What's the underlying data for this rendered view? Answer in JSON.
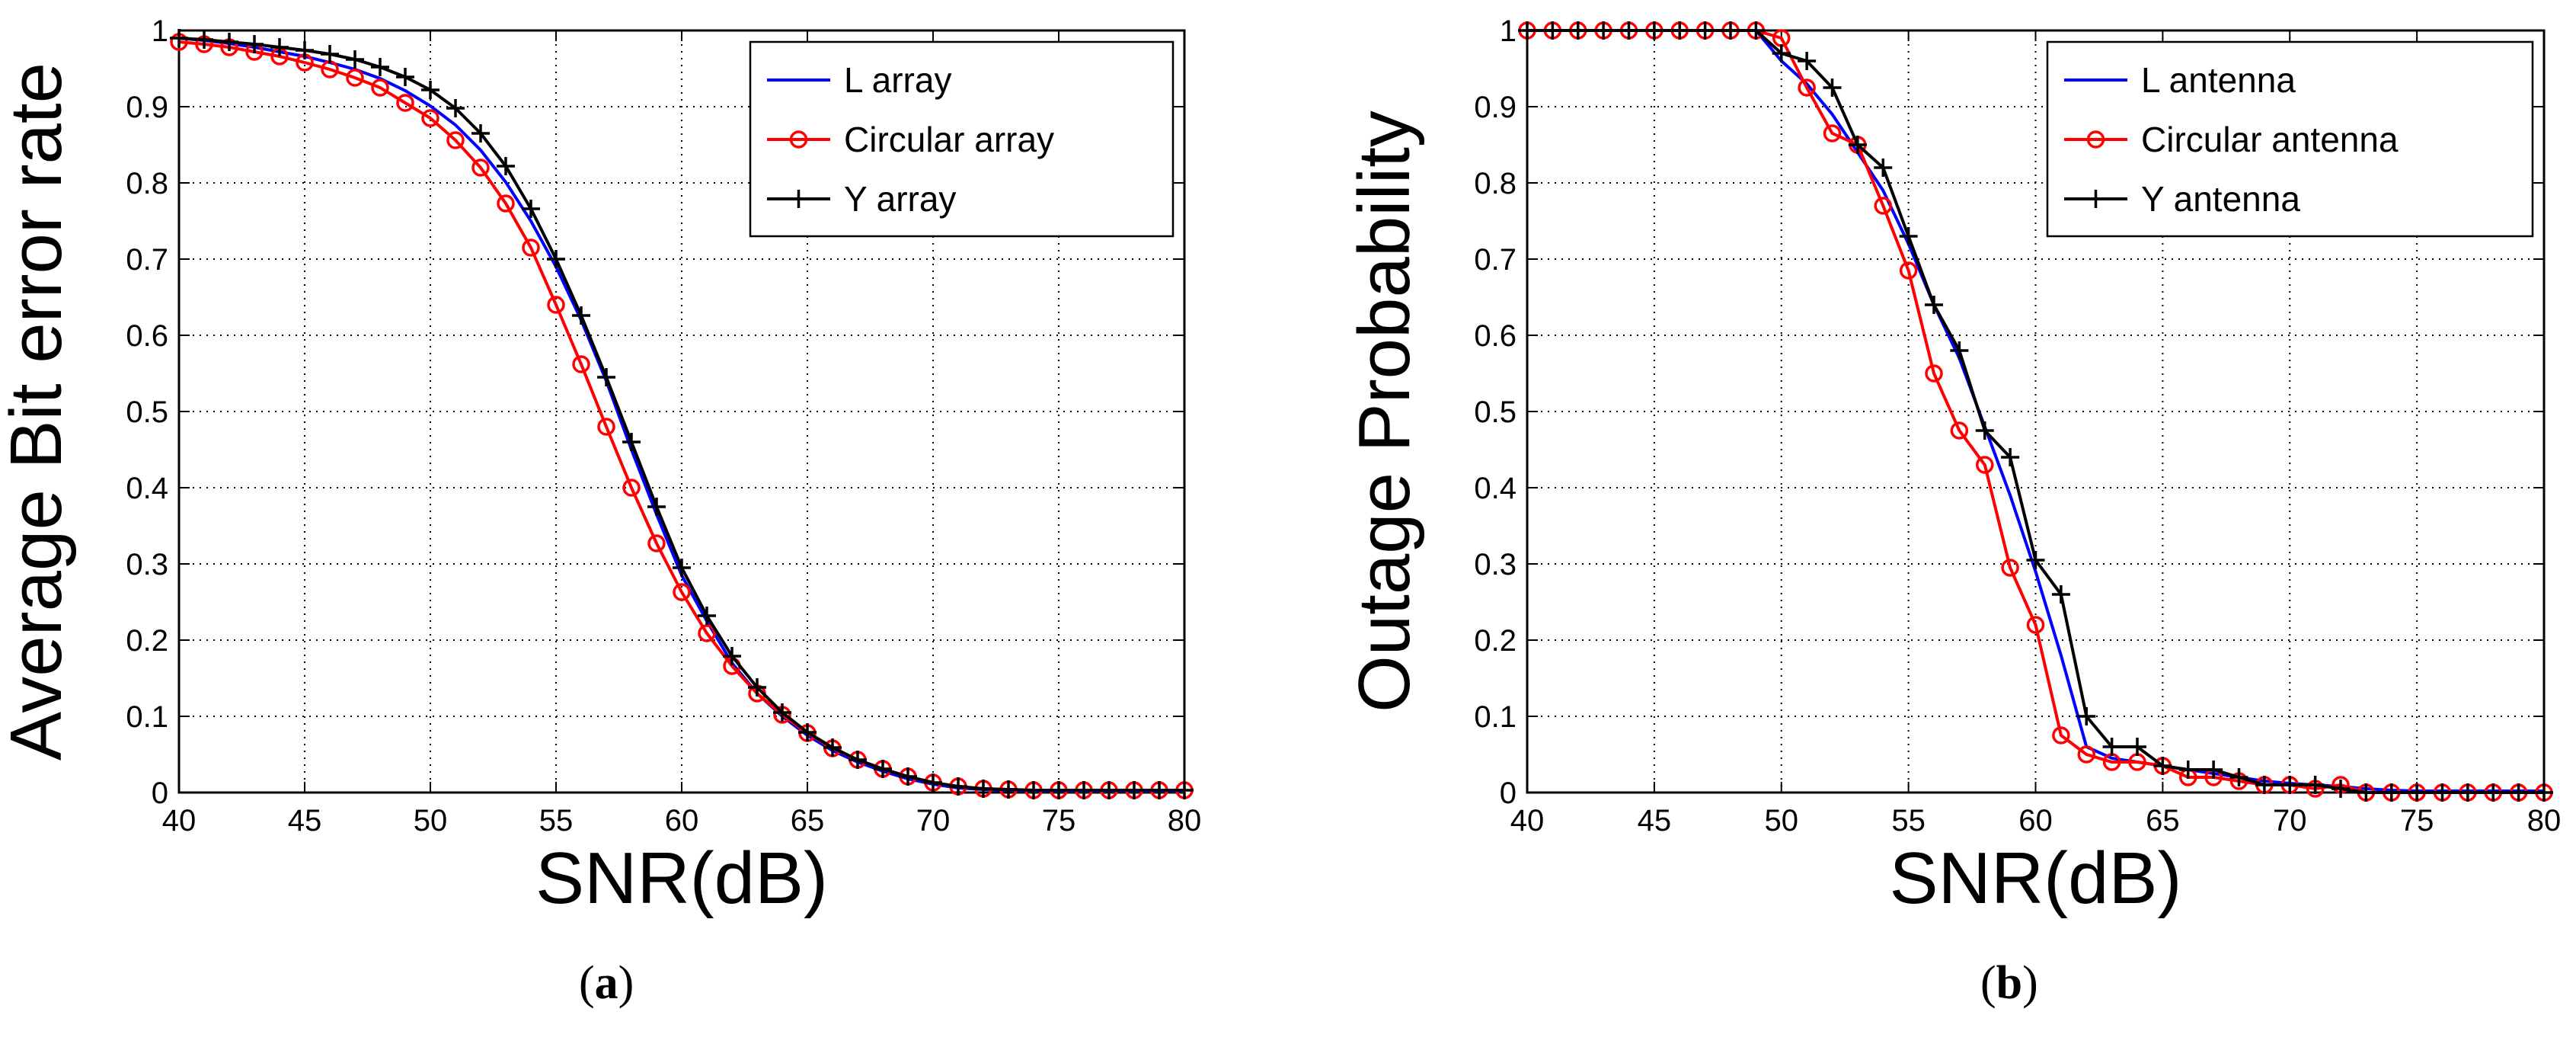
{
  "figure_label_a": "a",
  "figure_label_b": "b",
  "chart_data": [
    {
      "type": "line",
      "title": "",
      "xlabel": "SNR(dB)",
      "ylabel": "Average Bit error rate",
      "xlim": [
        40,
        80
      ],
      "ylim": [
        0,
        1
      ],
      "xticks": [
        "40",
        "45",
        "50",
        "55",
        "60",
        "65",
        "70",
        "75",
        "80"
      ],
      "yticks": [
        "0",
        "0.1",
        "0.2",
        "0.3",
        "0.4",
        "0.5",
        "0.6",
        "0.7",
        "0.8",
        "0.9",
        "1"
      ],
      "grid": true,
      "legend_position": "top-right",
      "x": [
        40,
        41,
        42,
        43,
        44,
        45,
        46,
        47,
        48,
        49,
        50,
        51,
        52,
        53,
        54,
        55,
        56,
        57,
        58,
        59,
        60,
        61,
        62,
        63,
        64,
        65,
        66,
        67,
        68,
        69,
        70,
        71,
        72,
        73,
        74,
        75,
        76,
        77,
        78,
        79,
        80
      ],
      "series": [
        {
          "name": "L array",
          "color": "#0000ff",
          "marker": "none",
          "values": [
            0.99,
            0.987,
            0.983,
            0.978,
            0.972,
            0.966,
            0.958,
            0.949,
            0.937,
            0.921,
            0.901,
            0.876,
            0.843,
            0.801,
            0.75,
            0.69,
            0.62,
            0.54,
            0.45,
            0.365,
            0.285,
            0.225,
            0.17,
            0.13,
            0.1,
            0.075,
            0.055,
            0.04,
            0.028,
            0.018,
            0.011,
            0.006,
            0.004,
            0.003,
            0.002,
            0.002,
            0.002,
            0.002,
            0.002,
            0.002,
            0.002
          ]
        },
        {
          "name": "Circular array",
          "color": "#ff0000",
          "marker": "circle",
          "values": [
            0.985,
            0.982,
            0.978,
            0.972,
            0.966,
            0.958,
            0.949,
            0.938,
            0.925,
            0.905,
            0.885,
            0.856,
            0.82,
            0.773,
            0.715,
            0.64,
            0.562,
            0.48,
            0.4,
            0.327,
            0.263,
            0.209,
            0.166,
            0.13,
            0.102,
            0.078,
            0.058,
            0.043,
            0.031,
            0.021,
            0.013,
            0.008,
            0.005,
            0.004,
            0.003,
            0.003,
            0.003,
            0.003,
            0.003,
            0.003,
            0.003
          ]
        },
        {
          "name": "Y array",
          "color": "#000000",
          "marker": "plus",
          "values": [
            0.99,
            0.988,
            0.985,
            0.982,
            0.978,
            0.974,
            0.969,
            0.962,
            0.952,
            0.939,
            0.922,
            0.898,
            0.865,
            0.822,
            0.766,
            0.7,
            0.626,
            0.545,
            0.46,
            0.375,
            0.295,
            0.232,
            0.179,
            0.138,
            0.105,
            0.079,
            0.059,
            0.043,
            0.031,
            0.021,
            0.013,
            0.008,
            0.005,
            0.004,
            0.003,
            0.003,
            0.003,
            0.003,
            0.003,
            0.003,
            0.003
          ]
        }
      ]
    },
    {
      "type": "line",
      "title": "",
      "xlabel": "SNR(dB)",
      "ylabel": "Outage Probability",
      "xlim": [
        40,
        80
      ],
      "ylim": [
        0,
        1
      ],
      "xticks": [
        "40",
        "45",
        "50",
        "55",
        "60",
        "65",
        "70",
        "75",
        "80"
      ],
      "yticks": [
        "0",
        "0.1",
        "0.2",
        "0.3",
        "0.4",
        "0.5",
        "0.6",
        "0.7",
        "0.8",
        "0.9",
        "1"
      ],
      "grid": true,
      "legend_position": "top-right",
      "x": [
        40,
        41,
        42,
        43,
        44,
        45,
        46,
        47,
        48,
        49,
        50,
        51,
        52,
        53,
        54,
        55,
        56,
        57,
        58,
        59,
        60,
        61,
        62,
        63,
        64,
        65,
        66,
        67,
        68,
        69,
        70,
        71,
        72,
        73,
        74,
        75,
        76,
        77,
        78,
        79,
        80
      ],
      "series": [
        {
          "name": "L antenna",
          "color": "#0000ff",
          "marker": "none",
          "values": [
            1,
            1,
            1,
            1,
            1,
            1,
            1,
            1,
            1,
            1,
            0.96,
            0.93,
            0.89,
            0.84,
            0.79,
            0.72,
            0.64,
            0.57,
            0.48,
            0.39,
            0.29,
            0.18,
            0.06,
            0.045,
            0.04,
            0.035,
            0.03,
            0.025,
            0.02,
            0.015,
            0.012,
            0.01,
            0.008,
            0.005,
            0.003,
            0.002,
            0.002,
            0.002,
            0.002,
            0.002,
            0.002
          ]
        },
        {
          "name": "Circular antenna",
          "color": "#ff0000",
          "marker": "circle",
          "values": [
            1,
            1,
            1,
            1,
            1,
            1,
            1,
            1,
            1,
            1,
            0.99,
            0.925,
            0.865,
            0.85,
            0.77,
            0.685,
            0.55,
            0.475,
            0.43,
            0.295,
            0.22,
            0.075,
            0.05,
            0.04,
            0.04,
            0.035,
            0.02,
            0.02,
            0.015,
            0.01,
            0.01,
            0.005,
            0.01,
            0,
            0,
            0,
            0,
            0,
            0,
            0,
            0
          ]
        },
        {
          "name": "Y antenna",
          "color": "#000000",
          "marker": "plus",
          "values": [
            1,
            1,
            1,
            1,
            1,
            1,
            1,
            1,
            1,
            1,
            0.97,
            0.96,
            0.925,
            0.85,
            0.82,
            0.73,
            0.64,
            0.58,
            0.475,
            0.44,
            0.305,
            0.26,
            0.1,
            0.06,
            0.06,
            0.035,
            0.03,
            0.03,
            0.02,
            0.01,
            0.01,
            0.01,
            0.005,
            0,
            0,
            0,
            0,
            0,
            0,
            0,
            0
          ]
        }
      ]
    }
  ]
}
